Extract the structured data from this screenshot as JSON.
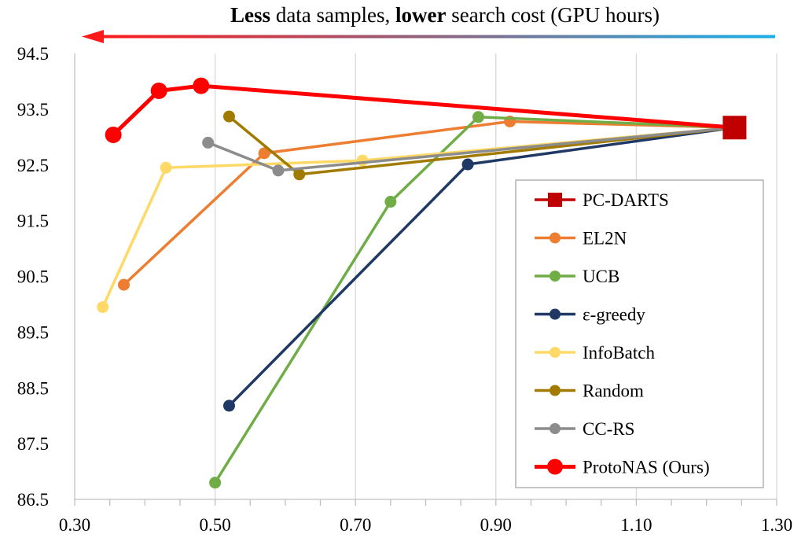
{
  "chart_data": {
    "type": "line",
    "title": {
      "bold1": "Less",
      "mid1": " data samples, ",
      "bold2": "lower",
      "mid2": " search cost (GPU hours)"
    },
    "xlabel": "",
    "ylabel": "",
    "xlim": [
      0.3,
      1.3
    ],
    "ylim": [
      86.5,
      94.5
    ],
    "x_ticks": [
      "0.30",
      "0.50",
      "0.70",
      "0.90",
      "1.10",
      "1.30"
    ],
    "y_ticks": [
      "86.5",
      "87.5",
      "88.5",
      "89.5",
      "90.5",
      "91.5",
      "92.5",
      "93.5",
      "94.5"
    ],
    "grid": "vertical",
    "legend_position": "right",
    "colors": {
      "arrow_start": "#ff1a1a",
      "arrow_end": "#1aaee8"
    },
    "series": [
      {
        "name": "PC-DARTS",
        "color": "#c00000",
        "marker": "square",
        "x": [
          1.24
        ],
        "y": [
          93.17
        ]
      },
      {
        "name": "EL2N",
        "color": "#ed7d31",
        "marker": "circle",
        "x": [
          0.37,
          0.57,
          0.92,
          1.24
        ],
        "y": [
          90.35,
          92.71,
          93.28,
          93.17
        ]
      },
      {
        "name": "UCB",
        "color": "#70ad47",
        "marker": "circle",
        "x": [
          0.5,
          0.75,
          0.875,
          1.24
        ],
        "y": [
          86.8,
          91.84,
          93.36,
          93.17
        ]
      },
      {
        "name": "ε-greedy",
        "color": "#1f3864",
        "marker": "circle",
        "x": [
          0.52,
          0.86,
          1.24
        ],
        "y": [
          88.18,
          92.51,
          93.17
        ]
      },
      {
        "name": "InfoBatch",
        "color": "#ffd966",
        "marker": "circle",
        "x": [
          0.34,
          0.43,
          0.71,
          1.24
        ],
        "y": [
          89.95,
          92.45,
          92.58,
          93.17
        ]
      },
      {
        "name": "Random",
        "color": "#a17a00",
        "marker": "circle",
        "x": [
          0.52,
          0.62,
          1.24
        ],
        "y": [
          93.37,
          92.33,
          93.17
        ]
      },
      {
        "name": "CC-RS",
        "color": "#8c8c8c",
        "marker": "circle",
        "x": [
          0.49,
          0.59,
          1.24
        ],
        "y": [
          92.9,
          92.4,
          93.17
        ]
      },
      {
        "name": "ProtoNAS (Ours)",
        "color": "#ff0000",
        "marker": "circle",
        "x": [
          0.355,
          0.42,
          0.48,
          1.24
        ],
        "y": [
          93.04,
          93.83,
          93.92,
          93.17
        ]
      }
    ]
  }
}
